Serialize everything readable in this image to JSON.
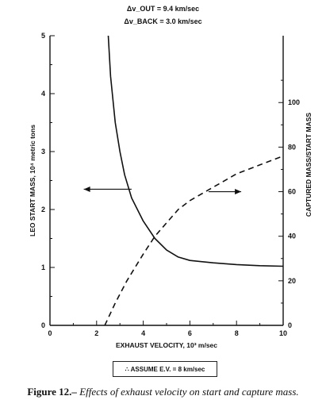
{
  "header": {
    "dv_out": "Δv_OUT = 9.4 km/sec",
    "dv_back": "Δv_BACK = 3.0 km/sec"
  },
  "chart_data": {
    "type": "line",
    "xlabel": "EXHAUST VELOCITY, 10³ m/sec",
    "ylabel_left": "LEO START MASS, 10⁴ metric tons",
    "ylabel_right": "CAPTURED MASS/START MASS",
    "xlim": [
      0,
      10
    ],
    "ylim_left": [
      0,
      5
    ],
    "ylim_right": [
      0,
      130
    ],
    "x_ticks": [
      0,
      2,
      4,
      6,
      8,
      10
    ],
    "y_left_ticks": [
      0,
      1,
      2,
      3,
      4,
      5
    ],
    "y_right_ticks": [
      0,
      20,
      40,
      60,
      80,
      100
    ],
    "grid": false,
    "series": [
      {
        "axis": "left",
        "style": "solid",
        "x": [
          2.5,
          2.6,
          2.8,
          3.0,
          3.2,
          3.5,
          4.0,
          4.5,
          5.0,
          5.5,
          6.0,
          7.0,
          8.0,
          9.0,
          10.0
        ],
        "y": [
          5.0,
          4.3,
          3.5,
          3.0,
          2.6,
          2.2,
          1.8,
          1.5,
          1.3,
          1.18,
          1.12,
          1.08,
          1.05,
          1.03,
          1.02
        ]
      },
      {
        "axis": "right",
        "style": "dashed",
        "x": [
          2.35,
          2.8,
          3.3,
          4.0,
          4.5,
          5.0,
          5.5,
          6.0,
          7.0,
          8.0,
          9.0,
          10.0
        ],
        "y": [
          0,
          10,
          20,
          32,
          40,
          46,
          52,
          56,
          62,
          68,
          72,
          76
        ]
      }
    ],
    "annotations": {
      "note": "∴ ASSUME E.V. = 8 km/sec"
    }
  },
  "caption": {
    "label": "Figure 12.–",
    "text": "Effects of exhaust velocity on start and capture mass."
  }
}
